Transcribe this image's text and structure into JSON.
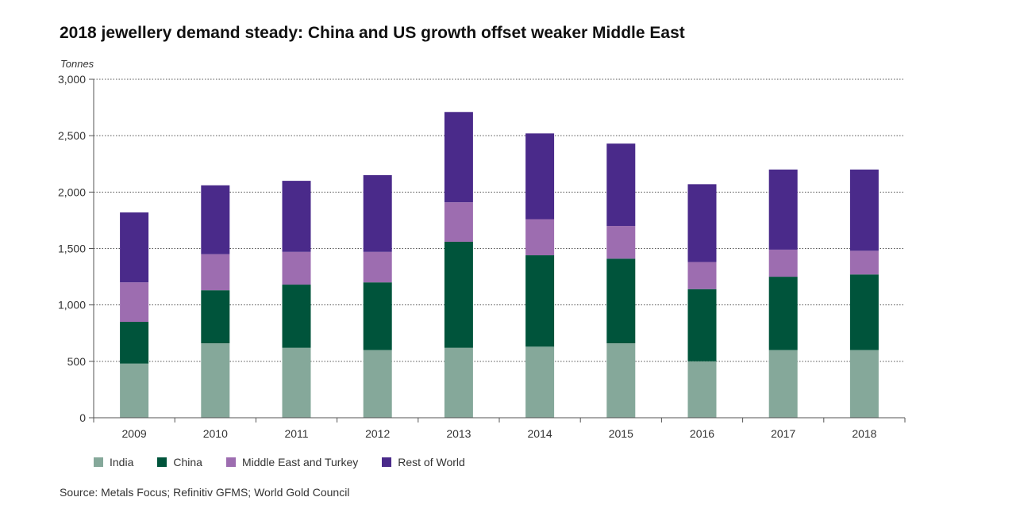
{
  "chart_data": {
    "type": "bar",
    "stacked": true,
    "title": "2018 jewellery demand steady: China and US growth offset weaker Middle East",
    "ylabel": "Tonnes",
    "xlabel": "",
    "ylim": [
      0,
      3000
    ],
    "yticks": [
      0,
      500,
      1000,
      1500,
      2000,
      2500,
      3000
    ],
    "ytick_labels": [
      "0",
      "500",
      "1,000",
      "1,500",
      "2,000",
      "2,500",
      "3,000"
    ],
    "grid": "horizontal dotted",
    "legend_position": "bottom-left",
    "categories": [
      "2009",
      "2010",
      "2011",
      "2012",
      "2013",
      "2014",
      "2015",
      "2016",
      "2017",
      "2018"
    ],
    "series": [
      {
        "name": "India",
        "color": "#85a89a",
        "values": [
          480,
          660,
          620,
          600,
          620,
          630,
          660,
          500,
          600,
          600
        ]
      },
      {
        "name": "China",
        "color": "#00543b",
        "values": [
          370,
          470,
          560,
          600,
          940,
          810,
          750,
          640,
          650,
          670
        ]
      },
      {
        "name": "Middle East and Turkey",
        "color": "#9d6db0",
        "values": [
          350,
          320,
          290,
          270,
          350,
          320,
          290,
          240,
          240,
          210
        ]
      },
      {
        "name": "Rest of World",
        "color": "#4a2a8a",
        "values": [
          620,
          610,
          630,
          680,
          800,
          760,
          730,
          690,
          710,
          720
        ]
      }
    ]
  },
  "source": "Source: Metals Focus; Refinitiv GFMS; World Gold Council"
}
